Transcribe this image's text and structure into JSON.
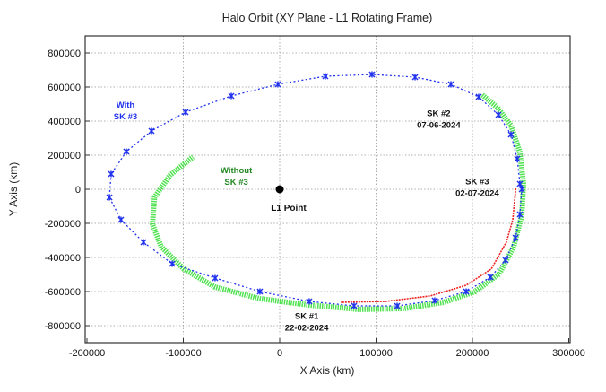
{
  "chart_data": {
    "type": "line",
    "title": "Halo Orbit (XY Plane - L1 Rotating Frame)",
    "xlabel": "X Axis (km)",
    "ylabel": "Y Axis (km)",
    "xlim": [
      -200000,
      300000
    ],
    "ylim": [
      -900000,
      900000
    ],
    "xticks": [
      -200000,
      -100000,
      0,
      100000,
      200000,
      300000
    ],
    "yticks": [
      800000,
      600000,
      400000,
      200000,
      0,
      -200000,
      -400000,
      -600000,
      -800000
    ],
    "grid": true,
    "colors": {
      "with": "#2233ee",
      "without": "#33dd33",
      "red": "#ee2222",
      "l1": "#000000"
    },
    "series": [
      {
        "name": "With SK #3",
        "style": "blue dotted with x markers",
        "points": [
          [
            -174900,
            89500
          ],
          [
            -176700,
            -47400
          ],
          [
            -164700,
            -178900
          ],
          [
            -141400,
            -310500
          ],
          [
            -111600,
            -436800
          ],
          [
            -67000,
            -521000
          ],
          [
            -20500,
            -600000
          ],
          [
            30700,
            -657900
          ],
          [
            77200,
            -684200
          ],
          [
            121900,
            -684200
          ],
          [
            160900,
            -652600
          ],
          [
            193500,
            -600000
          ],
          [
            218600,
            -515800
          ],
          [
            234400,
            -415800
          ],
          [
            244700,
            -284200
          ],
          [
            249300,
            -147400
          ],
          [
            251200,
            0
          ],
          [
            249300,
            31600
          ],
          [
            246500,
            178900
          ],
          [
            240000,
            321100
          ],
          [
            227000,
            436800
          ],
          [
            206500,
            542100
          ],
          [
            177700,
            615800
          ],
          [
            140500,
            657900
          ],
          [
            95800,
            673700
          ],
          [
            47400,
            663200
          ],
          [
            -1900,
            615800
          ],
          [
            -50200,
            547400
          ],
          [
            -97700,
            452600
          ],
          [
            -133000,
            342100
          ],
          [
            -159100,
            221100
          ],
          [
            -174900,
            89500
          ]
        ]
      },
      {
        "name": "Without SK #3",
        "style": "green thick",
        "points": [
          [
            210200,
            553000
          ],
          [
            226000,
            479000
          ],
          [
            240000,
            374000
          ],
          [
            249300,
            216000
          ],
          [
            253000,
            31600
          ],
          [
            251200,
            -153000
          ],
          [
            242800,
            -337000
          ],
          [
            228000,
            -495000
          ],
          [
            202800,
            -600000
          ],
          [
            170200,
            -663000
          ],
          [
            128400,
            -700000
          ],
          [
            81900,
            -705000
          ],
          [
            30700,
            -679000
          ],
          [
            -20500,
            -642000
          ],
          [
            -67000,
            -574000
          ],
          [
            -99500,
            -468000
          ],
          [
            -123000,
            -337000
          ],
          [
            -132000,
            -205000
          ],
          [
            -130000,
            -47000
          ],
          [
            -113500,
            84000
          ],
          [
            -90000,
            190000
          ]
        ]
      },
      {
        "name": "Red trajectory",
        "style": "red thin",
        "points": [
          [
            245000,
            5000
          ],
          [
            241900,
            -179000
          ],
          [
            235300,
            -310000
          ],
          [
            219500,
            -468000
          ],
          [
            193500,
            -563000
          ],
          [
            156300,
            -626000
          ],
          [
            109800,
            -658000
          ],
          [
            63300,
            -663000
          ]
        ]
      }
    ],
    "l1_point": {
      "label": "L1 Point",
      "x": 0,
      "y": 0
    },
    "annotations": [
      {
        "lines": [
          "With",
          "SK #3"
        ],
        "color": "#2233ee",
        "x": -160000,
        "y": 480000
      },
      {
        "lines": [
          "Without",
          "SK #3"
        ],
        "color": "#228822",
        "x": -45000,
        "y": 95000
      },
      {
        "lines": [
          "SK #2",
          "07-06-2024"
        ],
        "color": "#111111",
        "x": 165000,
        "y": 430000
      },
      {
        "lines": [
          "SK #3",
          "02-07-2024"
        ],
        "color": "#111111",
        "x": 205000,
        "y": 30000
      },
      {
        "lines": [
          "SK #1",
          "22-02-2024"
        ],
        "color": "#111111",
        "x": 28000,
        "y": -760000
      }
    ]
  }
}
